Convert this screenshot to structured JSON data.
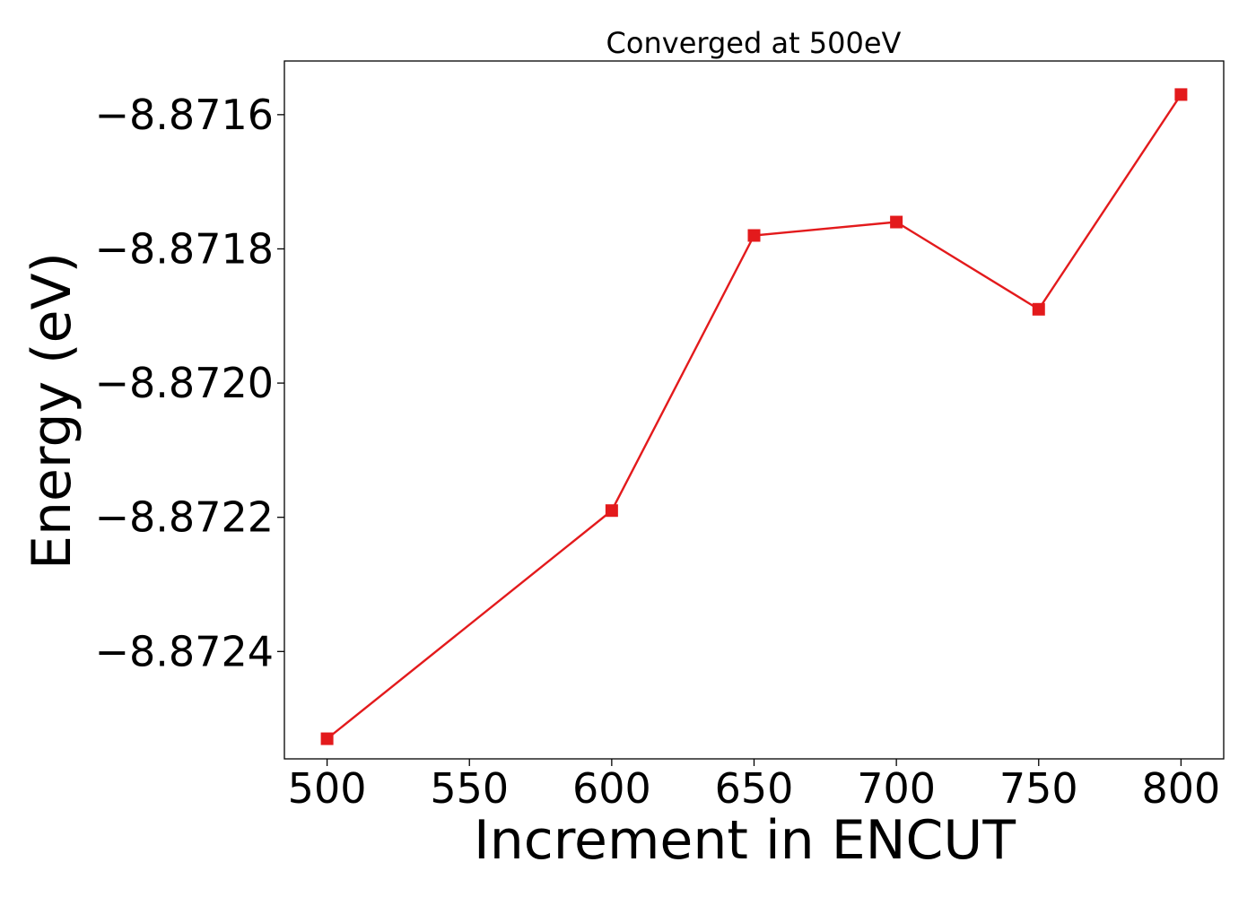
{
  "chart_data": {
    "type": "line",
    "title": "Converged at 500eV",
    "xlabel": "Increment in ENCUT",
    "ylabel": "Energy (eV)",
    "x": [
      500,
      600,
      650,
      700,
      750,
      800
    ],
    "series": [
      {
        "values": [
          -8.87253,
          -8.87219,
          -8.87178,
          -8.87176,
          -8.87189,
          -8.87157
        ],
        "color": "#e31a1c",
        "marker": "square"
      }
    ],
    "xticks": [
      500,
      550,
      600,
      650,
      700,
      750,
      800
    ],
    "xtick_labels": [
      "500",
      "550",
      "600",
      "650",
      "700",
      "750",
      "800"
    ],
    "yticks": [
      -8.8716,
      -8.8718,
      -8.872,
      -8.8722,
      -8.8724
    ],
    "ytick_labels": [
      "−8.8716",
      "−8.8718",
      "−8.8720",
      "−8.8722",
      "−8.8724"
    ],
    "xlim": [
      485,
      815
    ],
    "ylim": [
      -8.87256,
      -8.87152
    ],
    "grid": false,
    "legend": "none"
  }
}
